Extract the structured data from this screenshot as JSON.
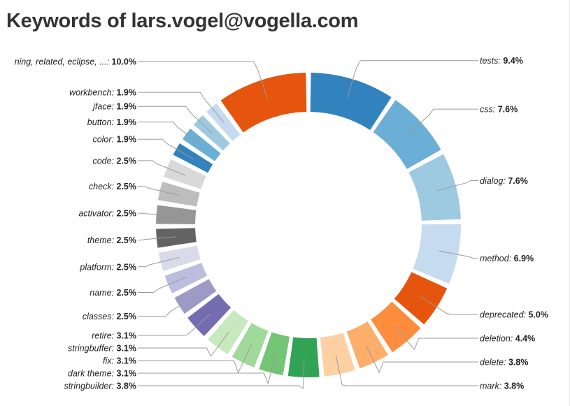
{
  "chart_data": {
    "type": "pie",
    "donut": true,
    "title": "Keywords of lars.vogel@vogella.com",
    "slices": [
      {
        "label": "tests",
        "value": 9.4,
        "display": "9.4%",
        "color": "#3182bd"
      },
      {
        "label": "css",
        "value": 7.6,
        "display": "7.6%",
        "color": "#6baed6"
      },
      {
        "label": "dialog",
        "value": 7.6,
        "display": "7.6%",
        "color": "#9ecae1"
      },
      {
        "label": "method",
        "value": 6.9,
        "display": "6.9%",
        "color": "#c6dbef"
      },
      {
        "label": "deprecated",
        "value": 5.0,
        "display": "5.0%",
        "color": "#e6550d"
      },
      {
        "label": "deletion",
        "value": 4.4,
        "display": "4.4%",
        "color": "#fd8d3c"
      },
      {
        "label": "delete",
        "value": 3.8,
        "display": "3.8%",
        "color": "#fdae6b"
      },
      {
        "label": "mark",
        "value": 3.8,
        "display": "3.8%",
        "color": "#fdd0a2"
      },
      {
        "label": "stringbuilder",
        "value": 3.8,
        "display": "3.8%",
        "color": "#31a354"
      },
      {
        "label": "dark theme",
        "value": 3.1,
        "display": "3.1%",
        "color": "#74c476"
      },
      {
        "label": "fix",
        "value": 3.1,
        "display": "3.1%",
        "color": "#a1d99b"
      },
      {
        "label": "stringbuffer",
        "value": 3.1,
        "display": "3.1%",
        "color": "#c7e9c0"
      },
      {
        "label": "retire",
        "value": 3.1,
        "display": "3.1%",
        "color": "#756bb1"
      },
      {
        "label": "classes",
        "value": 2.5,
        "display": "2.5%",
        "color": "#9e9ac8"
      },
      {
        "label": "name",
        "value": 2.5,
        "display": "2.5%",
        "color": "#bcbddc"
      },
      {
        "label": "platform",
        "value": 2.5,
        "display": "2.5%",
        "color": "#dadaeb"
      },
      {
        "label": "theme",
        "value": 2.5,
        "display": "2.5%",
        "color": "#636363"
      },
      {
        "label": "activator",
        "value": 2.5,
        "display": "2.5%",
        "color": "#969696"
      },
      {
        "label": "check",
        "value": 2.5,
        "display": "2.5%",
        "color": "#bdbdbd"
      },
      {
        "label": "code",
        "value": 2.5,
        "display": "2.5%",
        "color": "#d9d9d9"
      },
      {
        "label": "color",
        "value": 1.9,
        "display": "1.9%",
        "color": "#3182bd"
      },
      {
        "label": "button",
        "value": 1.9,
        "display": "1.9%",
        "color": "#6baed6"
      },
      {
        "label": "jface",
        "value": 1.9,
        "display": "1.9%",
        "color": "#9ecae1"
      },
      {
        "label": "workbench",
        "value": 1.9,
        "display": "1.9%",
        "color": "#c6dbef"
      },
      {
        "label": "ning, related, eclipse, ...",
        "value": 10.0,
        "display": "10.0%",
        "color": "#e6550d"
      }
    ]
  }
}
